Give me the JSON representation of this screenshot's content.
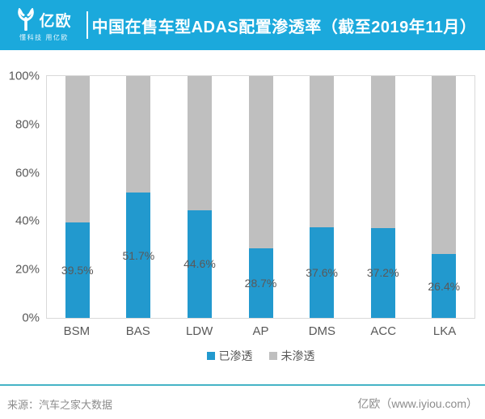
{
  "header": {
    "logo_text": "亿欧",
    "logo_tagline": "懂科技 用亿欧",
    "title": "中国在售车型ADAS配置渗透率（截至2019年11月）"
  },
  "chart_data": {
    "type": "bar",
    "stacked": true,
    "title": "中国在售车型ADAS配置渗透率（截至2019年11月）",
    "categories": [
      "BSM",
      "BAS",
      "LDW",
      "AP",
      "DMS",
      "ACC",
      "LKA"
    ],
    "series": [
      {
        "name": "已渗透",
        "color": "#2299CE",
        "values": [
          39.5,
          51.7,
          44.6,
          28.7,
          37.6,
          37.2,
          26.4
        ]
      },
      {
        "name": "未渗透",
        "color": "#BFBFBF",
        "values": [
          60.5,
          48.3,
          55.4,
          71.3,
          62.4,
          62.8,
          73.6
        ]
      }
    ],
    "data_labels": [
      "39.5%",
      "51.7%",
      "44.6%",
      "28.7%",
      "37.6%",
      "37.2%",
      "26.4%"
    ],
    "y_ticks": [
      "0%",
      "20%",
      "40%",
      "60%",
      "80%",
      "100%"
    ],
    "ylim": [
      0,
      100
    ],
    "grid": false,
    "legend_position": "bottom"
  },
  "legend": {
    "items": [
      {
        "label": "已渗透",
        "color": "#2299CE"
      },
      {
        "label": "未渗透",
        "color": "#BFBFBF"
      }
    ]
  },
  "footer": {
    "source": "来源：汽车之家大数据",
    "brand": "亿欧（www.iyiou.com）"
  },
  "colors": {
    "banner_blue": "#1BA9DC",
    "bar_blue": "#2299CE",
    "bar_gray": "#BFBFBF",
    "divider_teal": "#45B4C6",
    "axis_text": "#595959",
    "plot_border": "#D9D9D9"
  }
}
